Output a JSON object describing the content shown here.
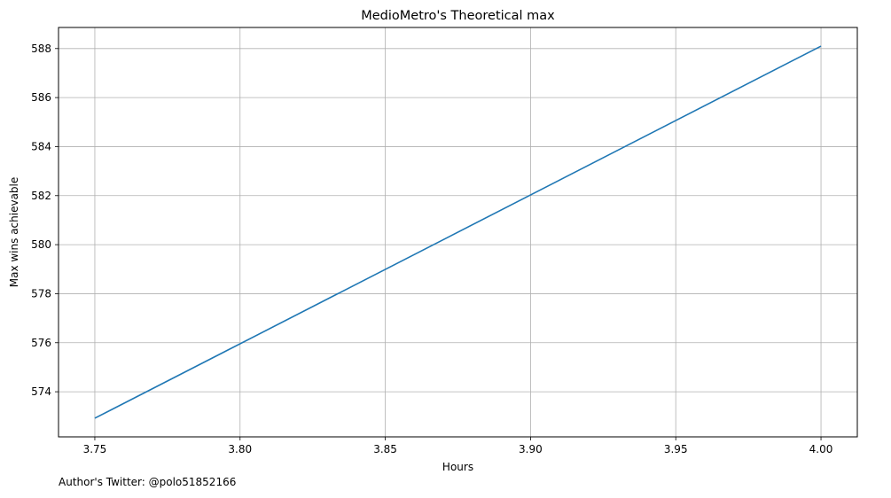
{
  "chart_data": {
    "type": "line",
    "title": "MedioMetro's Theoretical max",
    "xlabel": "Hours",
    "ylabel": "Max wins achievable",
    "xlim": [
      3.7375,
      4.0125
    ],
    "ylim": [
      572.16,
      588.86
    ],
    "xticks": [
      3.75,
      3.8,
      3.85,
      3.9,
      3.95,
      4.0
    ],
    "xtick_labels": [
      "3.75",
      "3.80",
      "3.85",
      "3.90",
      "3.95",
      "4.00"
    ],
    "yticks": [
      574,
      576,
      578,
      580,
      582,
      584,
      586,
      588
    ],
    "ytick_labels": [
      "574",
      "576",
      "578",
      "580",
      "582",
      "584",
      "586",
      "588"
    ],
    "grid": true,
    "series": [
      {
        "color": "#1f77b4",
        "x": [
          3.75,
          4.0
        ],
        "y": [
          572.92,
          588.1
        ]
      }
    ]
  },
  "footnote": "Author's Twitter: @polo51852166"
}
